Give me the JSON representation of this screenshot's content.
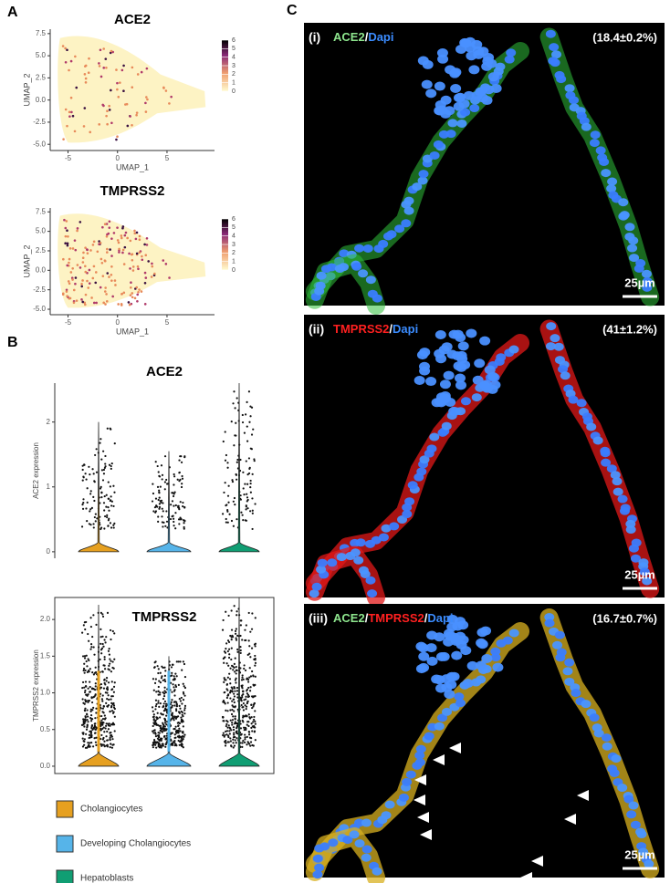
{
  "panels": {
    "A": {
      "label": "A",
      "plots": [
        {
          "title": "ACE2",
          "xlabel": "UMAP_1",
          "ylabel": "UMAP_2",
          "xlim": [
            -6.8,
            9.8
          ],
          "ylim": [
            -5.7,
            8
          ],
          "xticks": [
            -5,
            0,
            5
          ],
          "yticks": [
            {
              "value": 7.5,
              "label": "7.5"
            },
            {
              "value": 5,
              "label": "5.0"
            },
            {
              "value": 2.5,
              "label": "2.5"
            },
            {
              "value": 0,
              "label": "0.0"
            },
            {
              "value": -2.5,
              "label": "-2.5"
            },
            {
              "value": -5,
              "label": "-5.0"
            }
          ],
          "colorbar_ticks": [
            0,
            1,
            2,
            3,
            4,
            5,
            6
          ]
        },
        {
          "title": "TMPRSS2",
          "xlabel": "UMAP_1",
          "ylabel": "UMAP_2",
          "xlim": [
            -6.8,
            9.8
          ],
          "ylim": [
            -5.7,
            8
          ],
          "xticks": [
            -5,
            0,
            5
          ],
          "yticks": [
            {
              "value": 7.5,
              "label": "7.5"
            },
            {
              "value": 5,
              "label": "5.0"
            },
            {
              "value": 2.5,
              "label": "2.5"
            },
            {
              "value": 0,
              "label": "0.0"
            },
            {
              "value": -2.5,
              "label": "-2.5"
            },
            {
              "value": -5,
              "label": "-5.0"
            }
          ],
          "colorbar_ticks": [
            0,
            1,
            2,
            3,
            4,
            5,
            6
          ]
        }
      ]
    },
    "B": {
      "label": "B",
      "plots": [
        {
          "title": "ACE2",
          "ylabel": "ACE2 expression",
          "ylim": [
            -0.1,
            2.6
          ],
          "yticks": [
            0,
            1,
            2
          ],
          "max": [
            2.0,
            1.55,
            2.6
          ]
        },
        {
          "title": "TMPRSS2",
          "ylabel": "TMPRSS2 expression",
          "ylim": [
            -0.1,
            2.3
          ],
          "yticks": [
            {
              "value": 0,
              "label": "0.0"
            },
            {
              "value": 0.5,
              "label": "0.5"
            },
            {
              "value": 1,
              "label": "1.0"
            },
            {
              "value": 1.5,
              "label": "1.5"
            },
            {
              "value": 2,
              "label": "2.0"
            }
          ],
          "max": [
            2.2,
            1.5,
            2.3
          ]
        }
      ],
      "legend": [
        {
          "name": "Cholangiocytes",
          "color": "#e6a020"
        },
        {
          "name": "Developing Cholangiocytes",
          "color": "#56b4e9"
        },
        {
          "name": "Hepatoblasts",
          "color": "#109e73"
        }
      ]
    },
    "C": {
      "label": "C",
      "images": [
        {
          "label": "(i)",
          "stain": [
            {
              "text": "ACE2",
              "color": "#8ee68e"
            },
            {
              "text": "/",
              "color": "#ffffff"
            },
            {
              "text": "Dapi",
              "color": "#3b8cff"
            }
          ],
          "percent": "(18.4±0.2%)",
          "scale_bar": "25µm",
          "glow": "#2fbf3a"
        },
        {
          "label": "(ii)",
          "stain": [
            {
              "text": "TMPRSS2",
              "color": "#ff2020"
            },
            {
              "text": "/",
              "color": "#ffffff"
            },
            {
              "text": "Dapi",
              "color": "#3b8cff"
            }
          ],
          "percent": "(41±1.2%)",
          "scale_bar": "25µm",
          "glow": "#e01818"
        },
        {
          "label": "(iii)",
          "stain": [
            {
              "text": "ACE2",
              "color": "#8ee68e"
            },
            {
              "text": "/",
              "color": "#ffffff"
            },
            {
              "text": "TMPRSS2",
              "color": "#ff2020"
            },
            {
              "text": "/",
              "color": "#ffffff"
            },
            {
              "text": "Dapi",
              "color": "#3b8cff"
            }
          ],
          "percent": "(16.7±0.7%)",
          "scale_bar": "25µm",
          "glow": "#d8b020"
        }
      ]
    }
  }
}
